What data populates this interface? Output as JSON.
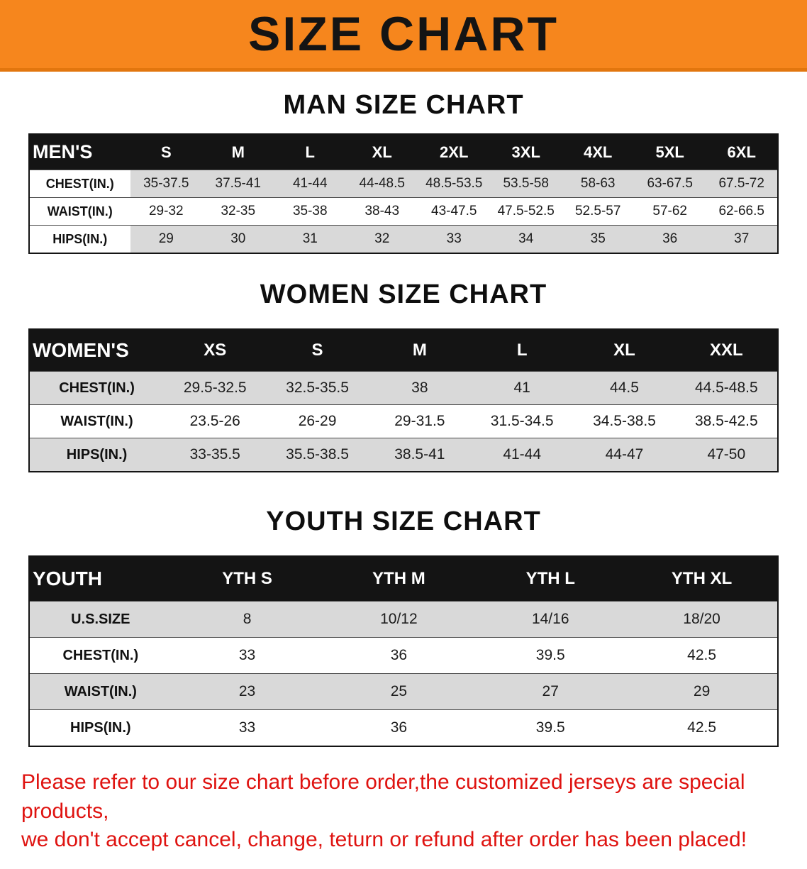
{
  "banner": {
    "title": "SIZE CHART"
  },
  "colors": {
    "banner_bg": "#f6861d",
    "table_header_bg": "#141414",
    "shaded_row": "#d9d9d9",
    "notice_text": "#df1310"
  },
  "sections": [
    {
      "id": "men",
      "heading": "MAN SIZE CHART",
      "table": {
        "header": [
          "MEN'S",
          "S",
          "M",
          "L",
          "XL",
          "2XL",
          "3XL",
          "4XL",
          "5XL",
          "6XL"
        ],
        "rows": [
          {
            "label": "CHEST(IN.)",
            "values": [
              "35-37.5",
              "37.5-41",
              "41-44",
              "44-48.5",
              "48.5-53.5",
              "53.5-58",
              "58-63",
              "63-67.5",
              "67.5-72"
            ]
          },
          {
            "label": "WAIST(IN.)",
            "values": [
              "29-32",
              "32-35",
              "35-38",
              "38-43",
              "43-47.5",
              "47.5-52.5",
              "52.5-57",
              "57-62",
              "62-66.5"
            ]
          },
          {
            "label": "HIPS(IN.)",
            "values": [
              "29",
              "30",
              "31",
              "32",
              "33",
              "34",
              "35",
              "36",
              "37"
            ]
          }
        ]
      }
    },
    {
      "id": "women",
      "heading": "WOMEN SIZE CHART",
      "table": {
        "header": [
          "WOMEN'S",
          "XS",
          "S",
          "M",
          "L",
          "XL",
          "XXL"
        ],
        "rows": [
          {
            "label": "CHEST(IN.)",
            "values": [
              "29.5-32.5",
              "32.5-35.5",
              "38",
              "41",
              "44.5",
              "44.5-48.5"
            ]
          },
          {
            "label": "WAIST(IN.)",
            "values": [
              "23.5-26",
              "26-29",
              "29-31.5",
              "31.5-34.5",
              "34.5-38.5",
              "38.5-42.5"
            ]
          },
          {
            "label": "HIPS(IN.)",
            "values": [
              "33-35.5",
              "35.5-38.5",
              "38.5-41",
              "41-44",
              "44-47",
              "47-50"
            ]
          }
        ]
      }
    },
    {
      "id": "youth",
      "heading": "YOUTH SIZE CHART",
      "table": {
        "header": [
          "YOUTH",
          "YTH S",
          "YTH M",
          "YTH L",
          "YTH XL"
        ],
        "rows": [
          {
            "label": "U.S.SIZE",
            "values": [
              "8",
              "10/12",
              "14/16",
              "18/20"
            ]
          },
          {
            "label": "CHEST(IN.)",
            "values": [
              "33",
              "36",
              "39.5",
              "42.5"
            ]
          },
          {
            "label": "WAIST(IN.)",
            "values": [
              "23",
              "25",
              "27",
              "29"
            ]
          },
          {
            "label": "HIPS(IN.)",
            "values": [
              "33",
              "36",
              "39.5",
              "42.5"
            ]
          }
        ]
      }
    }
  ],
  "footer": {
    "line1": "Please refer to our size chart before order,the customized jerseys are special products,",
    "line2": "we don't accept cancel, change, teturn or refund after order has been placed!"
  }
}
